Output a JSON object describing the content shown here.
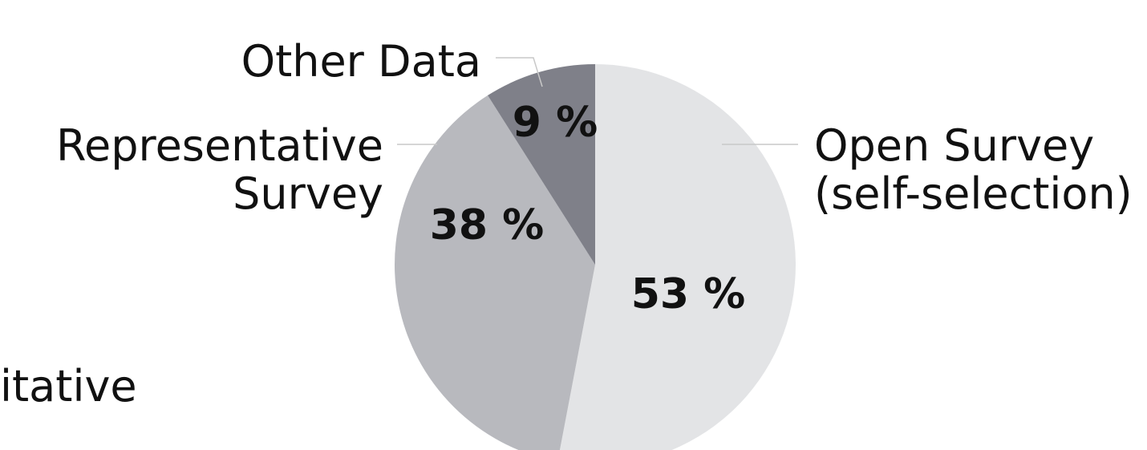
{
  "chart_data": {
    "type": "pie",
    "categories": [
      [
        "Open Survey",
        "(self-selection)"
      ],
      [
        "Representative",
        "Survey"
      ],
      [
        "Other Data"
      ]
    ],
    "values": [
      53,
      38,
      9
    ],
    "value_labels": [
      "53 %",
      "38 %",
      "9 %"
    ],
    "colors": [
      "#e3e4e6",
      "#b8b9be",
      "#7f8089"
    ],
    "annotations": [
      "itative"
    ]
  }
}
